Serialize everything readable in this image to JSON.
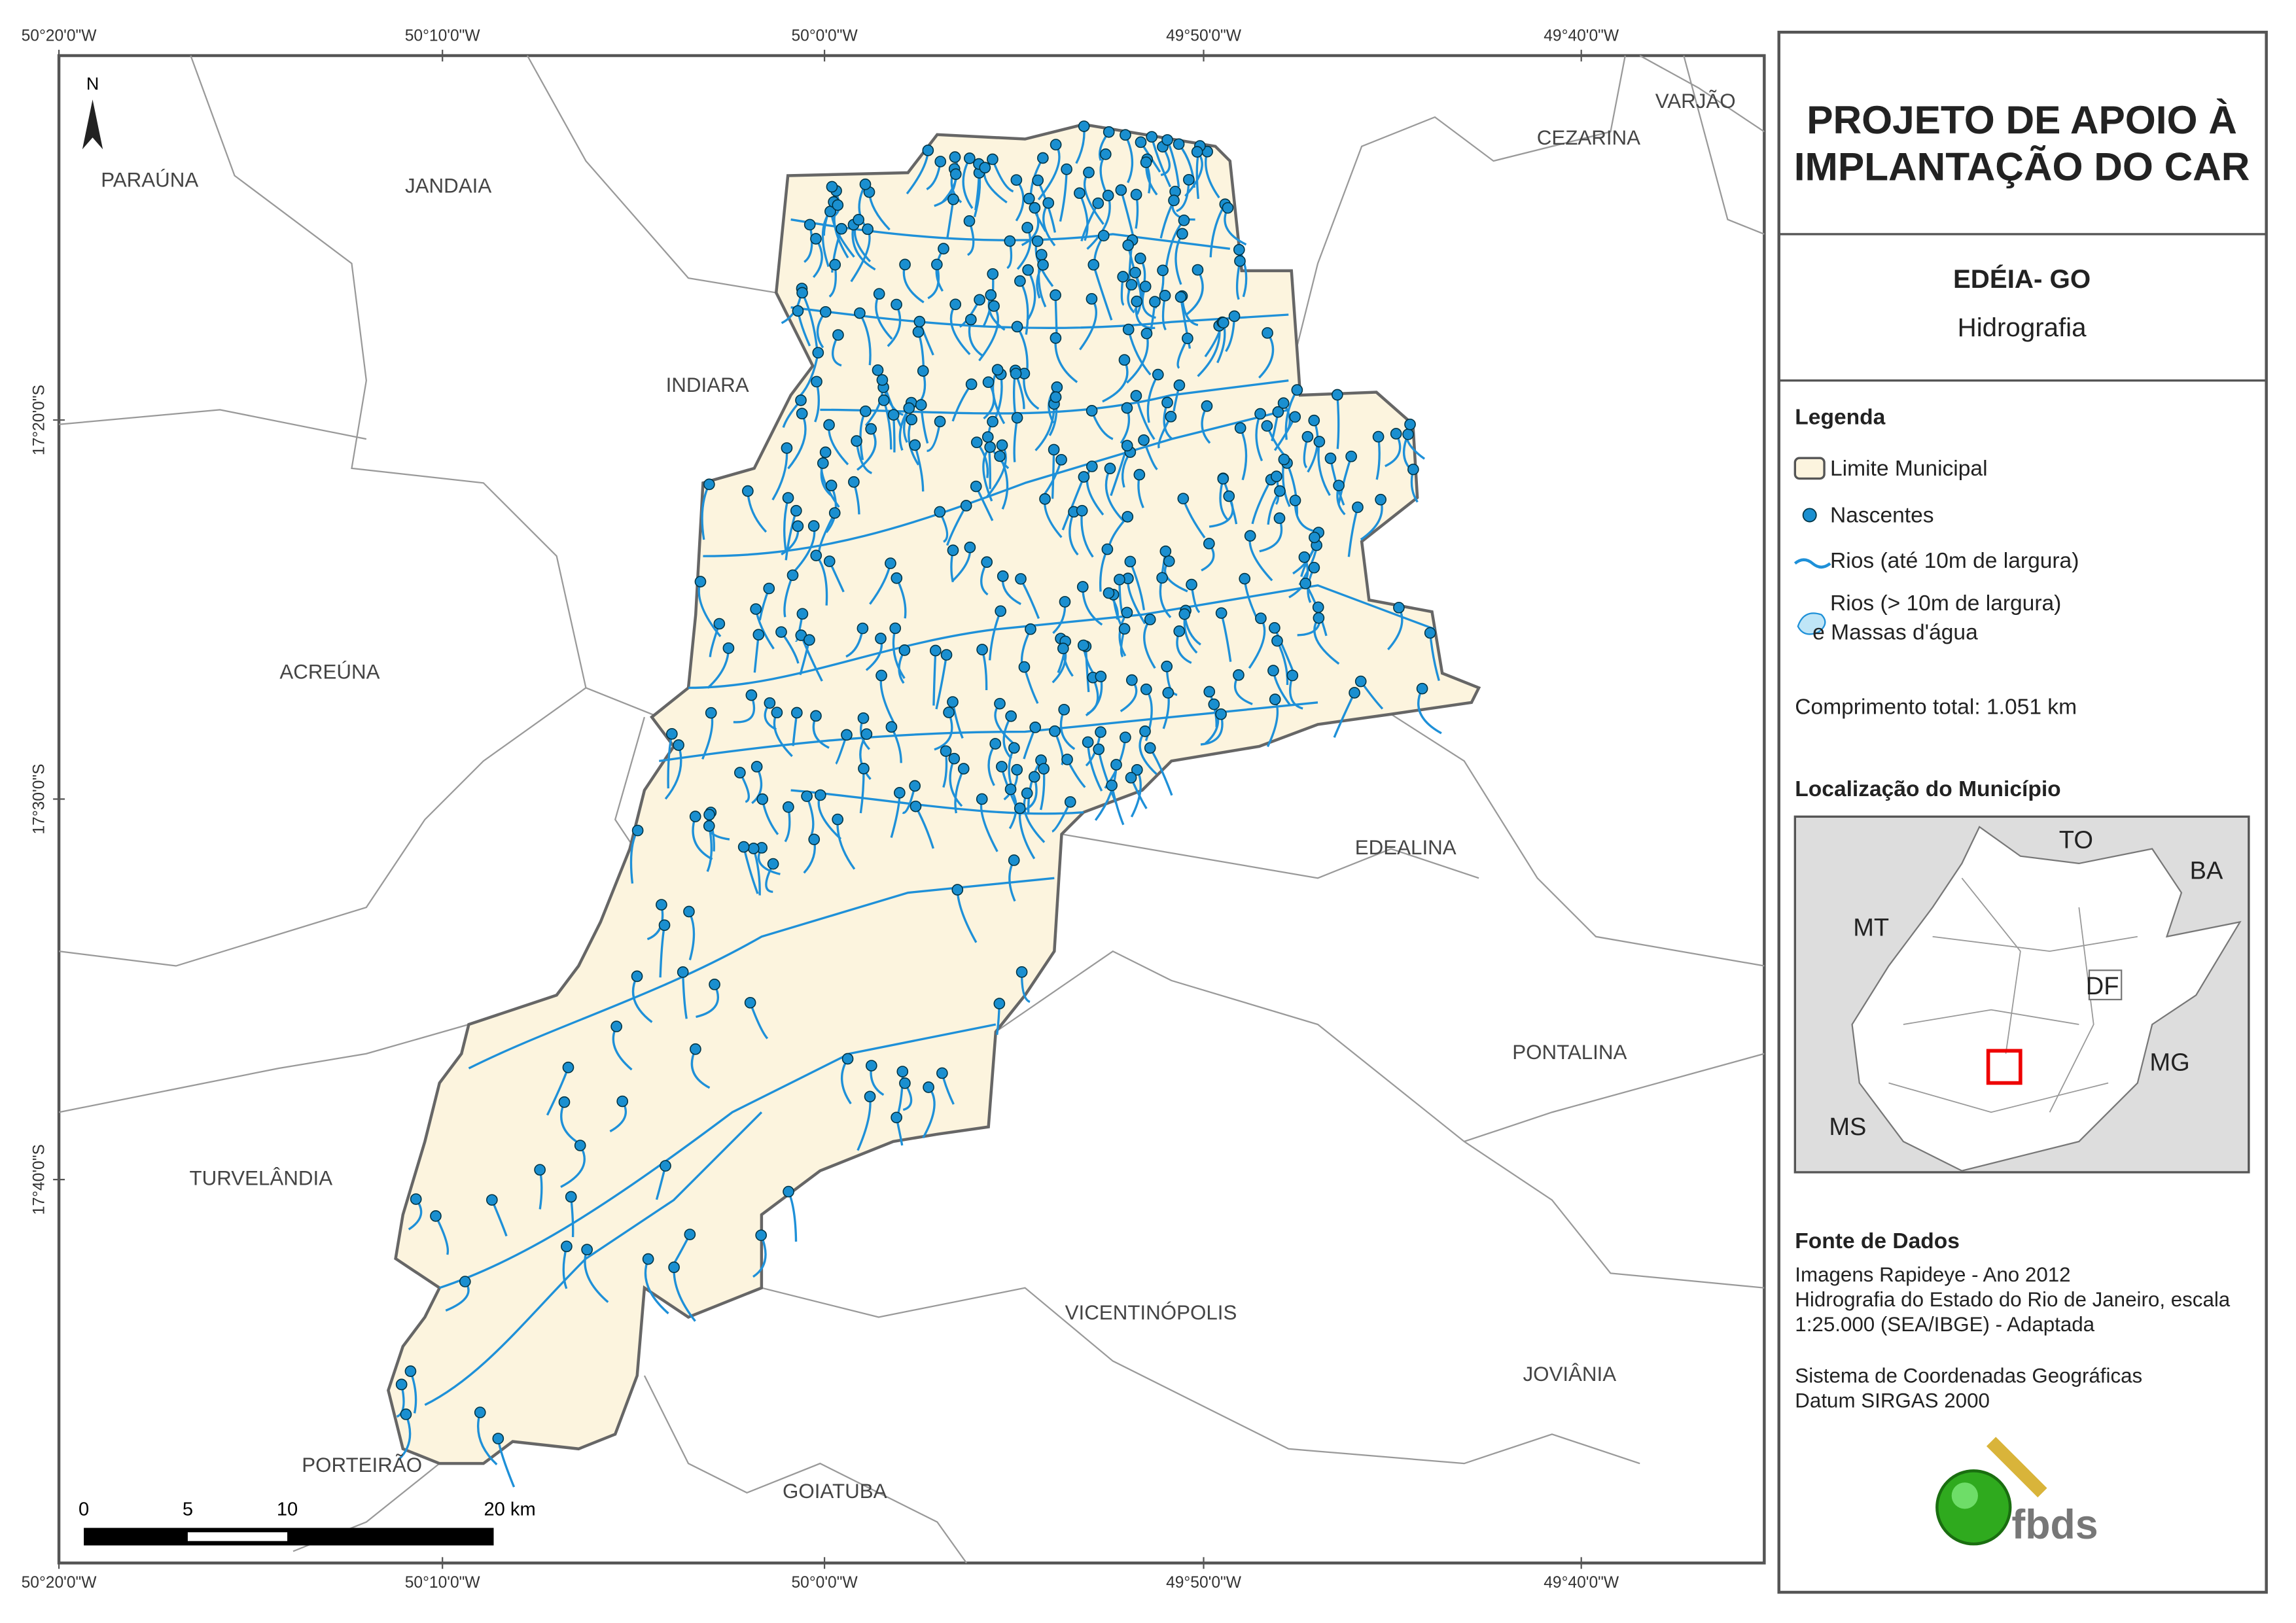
{
  "map": {
    "longitudes": [
      "50°20'0\"W",
      "50°10'0\"W",
      "50°0'0\"W",
      "49°50'0\"W",
      "49°40'0\"W"
    ],
    "latitudes": [
      "17°20'0\"S",
      "17°30'0\"S",
      "17°40'0\"S"
    ],
    "north": "N",
    "municipalities": [
      "PARAÚNA",
      "JANDAIA",
      "INDIARA",
      "ACREÚNA",
      "TURVELÂNDIA",
      "PORTEIRÃO",
      "GOIATUBA",
      "VICENTINÓPOLIS",
      "JOVIÂNIA",
      "PONTALINA",
      "EDEALINA",
      "CEZARINA",
      "VARJÃO"
    ],
    "scale_bar": [
      "0",
      "5",
      "10",
      "20 km"
    ]
  },
  "panel": {
    "title_lines": [
      "PROJETO DE APOIO À",
      "IMPLANTAÇÃO DO CAR"
    ],
    "municipality": "EDÉIA- GO",
    "theme": "Hidrografia",
    "legend": {
      "title": "Legenda",
      "items": [
        "Limite Municipal",
        "Nascentes",
        "Rios (até 10m de largura)",
        "Rios (> 10m de largura)",
        "e Massas d'água"
      ]
    },
    "total_length": "Comprimento total: 1.051 km",
    "location": {
      "title": "Localização do Município",
      "labels": [
        "TO",
        "BA",
        "MT",
        "DF",
        "MG",
        "MS"
      ]
    },
    "sources": {
      "title": "Fonte de Dados",
      "lines": [
        "Imagens Rapideye - Ano 2012",
        "Hidrografia do Estado do Rio de Janeiro, escala",
        "1:25.000 (SEA/IBGE) - Adaptada",
        "Sistema de Coordenadas Geográficas",
        "Datum SIRGAS 2000"
      ]
    },
    "logo": "fbds"
  }
}
